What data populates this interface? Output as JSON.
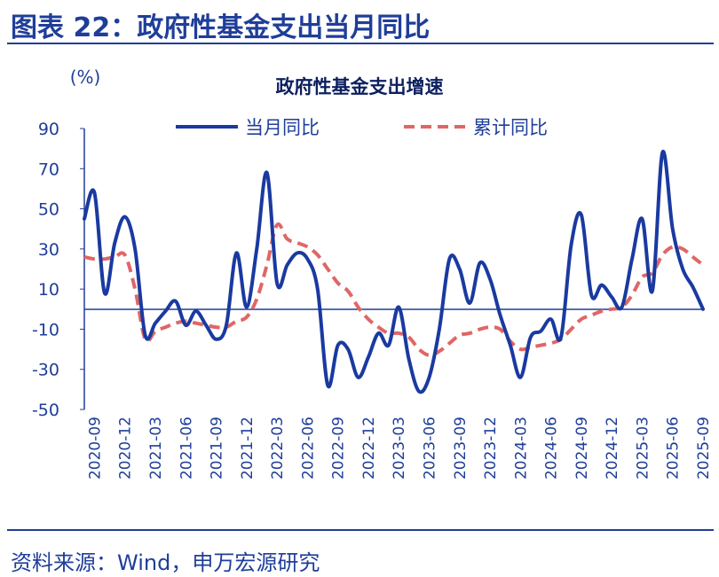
{
  "header": {
    "title": "图表 22：政府性基金支出当月同比"
  },
  "footer": {
    "source": "资料来源：Wind，申万宏源研究"
  },
  "chart_data": {
    "type": "line",
    "title": "政府性基金支出增速",
    "unit_label": "(%)",
    "ylim": [
      -50,
      90
    ],
    "yticks": [
      90,
      70,
      50,
      30,
      10,
      -10,
      -30,
      -50
    ],
    "x_tick_labels": [
      "2020-09",
      "2020-12",
      "2021-03",
      "2021-06",
      "2021-09",
      "2021-12",
      "2022-03",
      "2022-06",
      "2022-09",
      "2022-12",
      "2023-03",
      "2023-06",
      "2023-09",
      "2023-12",
      "2024-03",
      "2024-06",
      "2024-09",
      "2024-12",
      "2025-03",
      "2025-06",
      "2025-09"
    ],
    "x": [
      "2020-08",
      "2020-09",
      "2020-10",
      "2020-11",
      "2020-12",
      "2021-01",
      "2021-02",
      "2021-03",
      "2021-04",
      "2021-05",
      "2021-06",
      "2021-07",
      "2021-08",
      "2021-09",
      "2021-10",
      "2021-11",
      "2021-12",
      "2022-01",
      "2022-02",
      "2022-03",
      "2022-04",
      "2022-05",
      "2022-06",
      "2022-07",
      "2022-08",
      "2022-09",
      "2022-10",
      "2022-11",
      "2022-12",
      "2023-01",
      "2023-02",
      "2023-03",
      "2023-04",
      "2023-05",
      "2023-06",
      "2023-07",
      "2023-08",
      "2023-09",
      "2023-10",
      "2023-11",
      "2023-12",
      "2024-01",
      "2024-02",
      "2024-03",
      "2024-04",
      "2024-05",
      "2024-06",
      "2024-07",
      "2024-08",
      "2024-09",
      "2024-10",
      "2024-11",
      "2024-12",
      "2025-01",
      "2025-02",
      "2025-03",
      "2025-04",
      "2025-05",
      "2025-06",
      "2025-07",
      "2025-08",
      "2025-09"
    ],
    "series": [
      {
        "name": "当月同比",
        "color": "#1a3aa0",
        "style": "solid",
        "values": [
          45,
          58,
          8,
          33,
          46,
          30,
          -13,
          -7,
          -1,
          4,
          -8,
          -1,
          -8,
          -15,
          -8,
          28,
          1,
          30,
          68,
          13,
          22,
          28,
          25,
          10,
          -38,
          -18,
          -20,
          -34,
          -24,
          -12,
          -18,
          1,
          -25,
          -41,
          -34,
          -10,
          25,
          20,
          3,
          23,
          15,
          -3,
          -18,
          -34,
          -14,
          -11,
          -5,
          -14,
          32,
          47,
          7,
          12,
          6,
          1,
          25,
          45,
          9,
          78,
          40,
          20,
          11,
          0
        ]
      },
      {
        "name": "累计同比",
        "color": "#e06666",
        "style": "dashed",
        "values": [
          26,
          25,
          25,
          26,
          27,
          10,
          -15,
          -11,
          -9,
          -7,
          -6,
          -7,
          -8,
          -9,
          -9,
          -6,
          -4,
          5,
          22,
          42,
          35,
          33,
          31,
          27,
          20,
          13,
          9,
          1,
          -5,
          -9,
          -12,
          -12,
          -14,
          -20,
          -23,
          -21,
          -17,
          -13,
          -12,
          -10,
          -9,
          -10,
          -16,
          -20,
          -19,
          -18,
          -17,
          -15,
          -10,
          -5,
          -3,
          -1,
          0,
          1,
          7,
          16,
          18,
          27,
          31,
          30,
          26,
          22
        ]
      }
    ],
    "legend": [
      "当月同比",
      "累计同比"
    ],
    "legend_position": "top",
    "grid": false
  }
}
